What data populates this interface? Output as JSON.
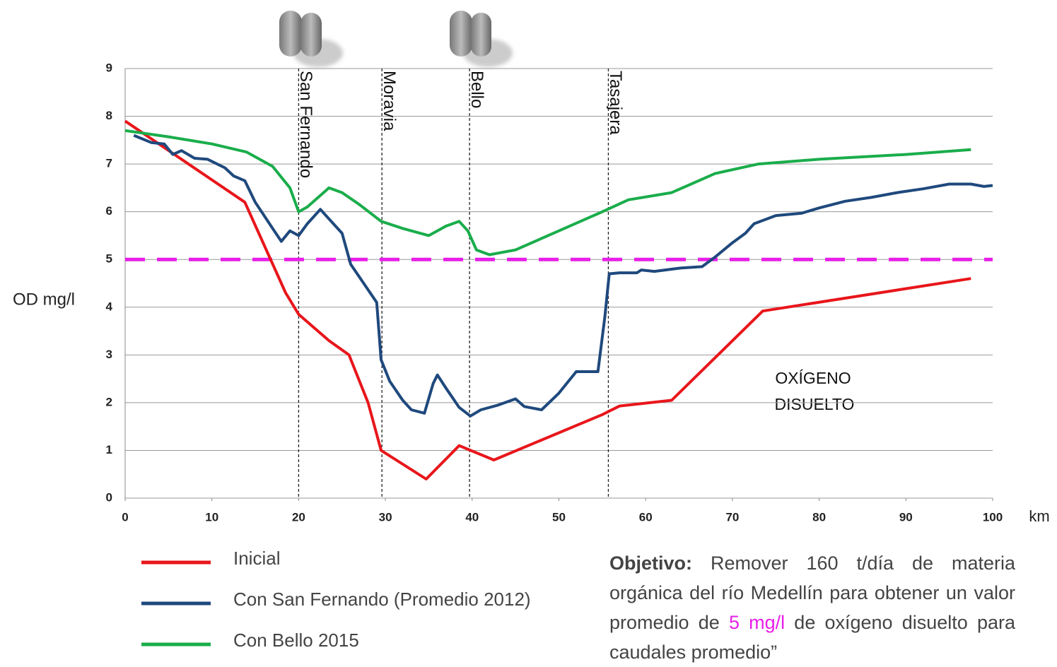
{
  "chart_data": {
    "type": "line",
    "xlabel": "km",
    "ylabel": "OD mg/l",
    "xlim": [
      0,
      100
    ],
    "ylim": [
      0,
      9
    ],
    "xticks": [
      0,
      10,
      20,
      30,
      40,
      50,
      60,
      70,
      80,
      90,
      100
    ],
    "yticks": [
      0,
      1,
      2,
      3,
      4,
      5,
      6,
      7,
      8,
      9
    ],
    "grid": true,
    "threshold": {
      "value": 5,
      "color": "#e81ee8"
    },
    "references": [
      {
        "name": "San Fernando",
        "x": 20
      },
      {
        "name": "Moravia",
        "x": 29.6
      },
      {
        "name": "Bello",
        "x": 39.7
      },
      {
        "name": "Tasajera",
        "x": 55.7
      }
    ],
    "annotation": [
      "OXÍGENO",
      "DISUELTO"
    ],
    "series": [
      {
        "name": "Inicial",
        "color": "#e8161b",
        "x": [
          0,
          13.8,
          18.5,
          20,
          23.5,
          25.8,
          28,
          29.5,
          34.7,
          38.5,
          42.5,
          55,
          57,
          63,
          73.5,
          97.5
        ],
        "values": [
          7.9,
          6.2,
          4.3,
          3.85,
          3.3,
          3.0,
          2.0,
          1.0,
          0.4,
          1.1,
          0.8,
          1.75,
          1.93,
          2.05,
          3.92,
          4.6
        ]
      },
      {
        "name": "Con San Fernando (Promedio 2012)",
        "color": "#1f497d",
        "x": [
          1,
          3,
          4.5,
          5.5,
          6.5,
          8,
          9.5,
          11.5,
          12.5,
          13.8,
          15,
          17,
          18,
          19,
          20,
          21,
          22.5,
          23.5,
          25,
          26,
          27.5,
          29,
          29.5,
          30.5,
          32,
          33,
          34.5,
          35.5,
          36,
          37,
          38.5,
          39.8,
          41,
          43,
          45,
          46,
          48,
          50,
          52,
          54.5,
          55.3,
          55.8,
          57,
          59,
          59.5,
          61,
          64,
          66.5,
          68,
          70,
          71.5,
          72.5,
          75,
          78,
          80,
          83,
          86,
          89,
          92,
          95,
          97.5,
          99,
          100
        ],
        "values": [
          7.6,
          7.45,
          7.42,
          7.2,
          7.28,
          7.12,
          7.1,
          6.92,
          6.75,
          6.65,
          6.2,
          5.65,
          5.38,
          5.6,
          5.5,
          5.75,
          6.05,
          5.85,
          5.55,
          4.9,
          4.5,
          4.1,
          2.9,
          2.45,
          2.05,
          1.85,
          1.78,
          2.4,
          2.58,
          2.3,
          1.9,
          1.72,
          1.85,
          1.95,
          2.08,
          1.92,
          1.85,
          2.2,
          2.65,
          2.65,
          3.8,
          4.7,
          4.72,
          4.72,
          4.78,
          4.75,
          4.82,
          4.85,
          5.05,
          5.35,
          5.55,
          5.75,
          5.92,
          5.97,
          6.08,
          6.22,
          6.3,
          6.4,
          6.48,
          6.58,
          6.58,
          6.53,
          6.55
        ]
      },
      {
        "name": "Con Bello 2015",
        "color": "#1aad4b",
        "x": [
          0,
          5,
          10,
          14,
          17,
          19,
          20,
          21,
          23.5,
          25,
          27,
          29.5,
          32,
          35,
          37,
          38.5,
          39.5,
          40.5,
          42,
          45,
          50,
          55,
          58,
          63,
          68,
          73,
          80,
          90,
          97.5
        ],
        "values": [
          7.7,
          7.57,
          7.42,
          7.25,
          6.95,
          6.5,
          6.0,
          6.1,
          6.5,
          6.4,
          6.15,
          5.8,
          5.65,
          5.5,
          5.7,
          5.8,
          5.6,
          5.2,
          5.1,
          5.2,
          5.6,
          6.0,
          6.25,
          6.4,
          6.8,
          7.0,
          7.1,
          7.2,
          7.3
        ]
      }
    ]
  },
  "note": {
    "bold": "Objetivo:",
    "text1": "Remover 160 t/día de materia orgánica del río Medellín para obtener un valor promedio de",
    "highlight": "5 mg/l",
    "text2": "de oxígeno disuelto para caudales promedio”"
  }
}
